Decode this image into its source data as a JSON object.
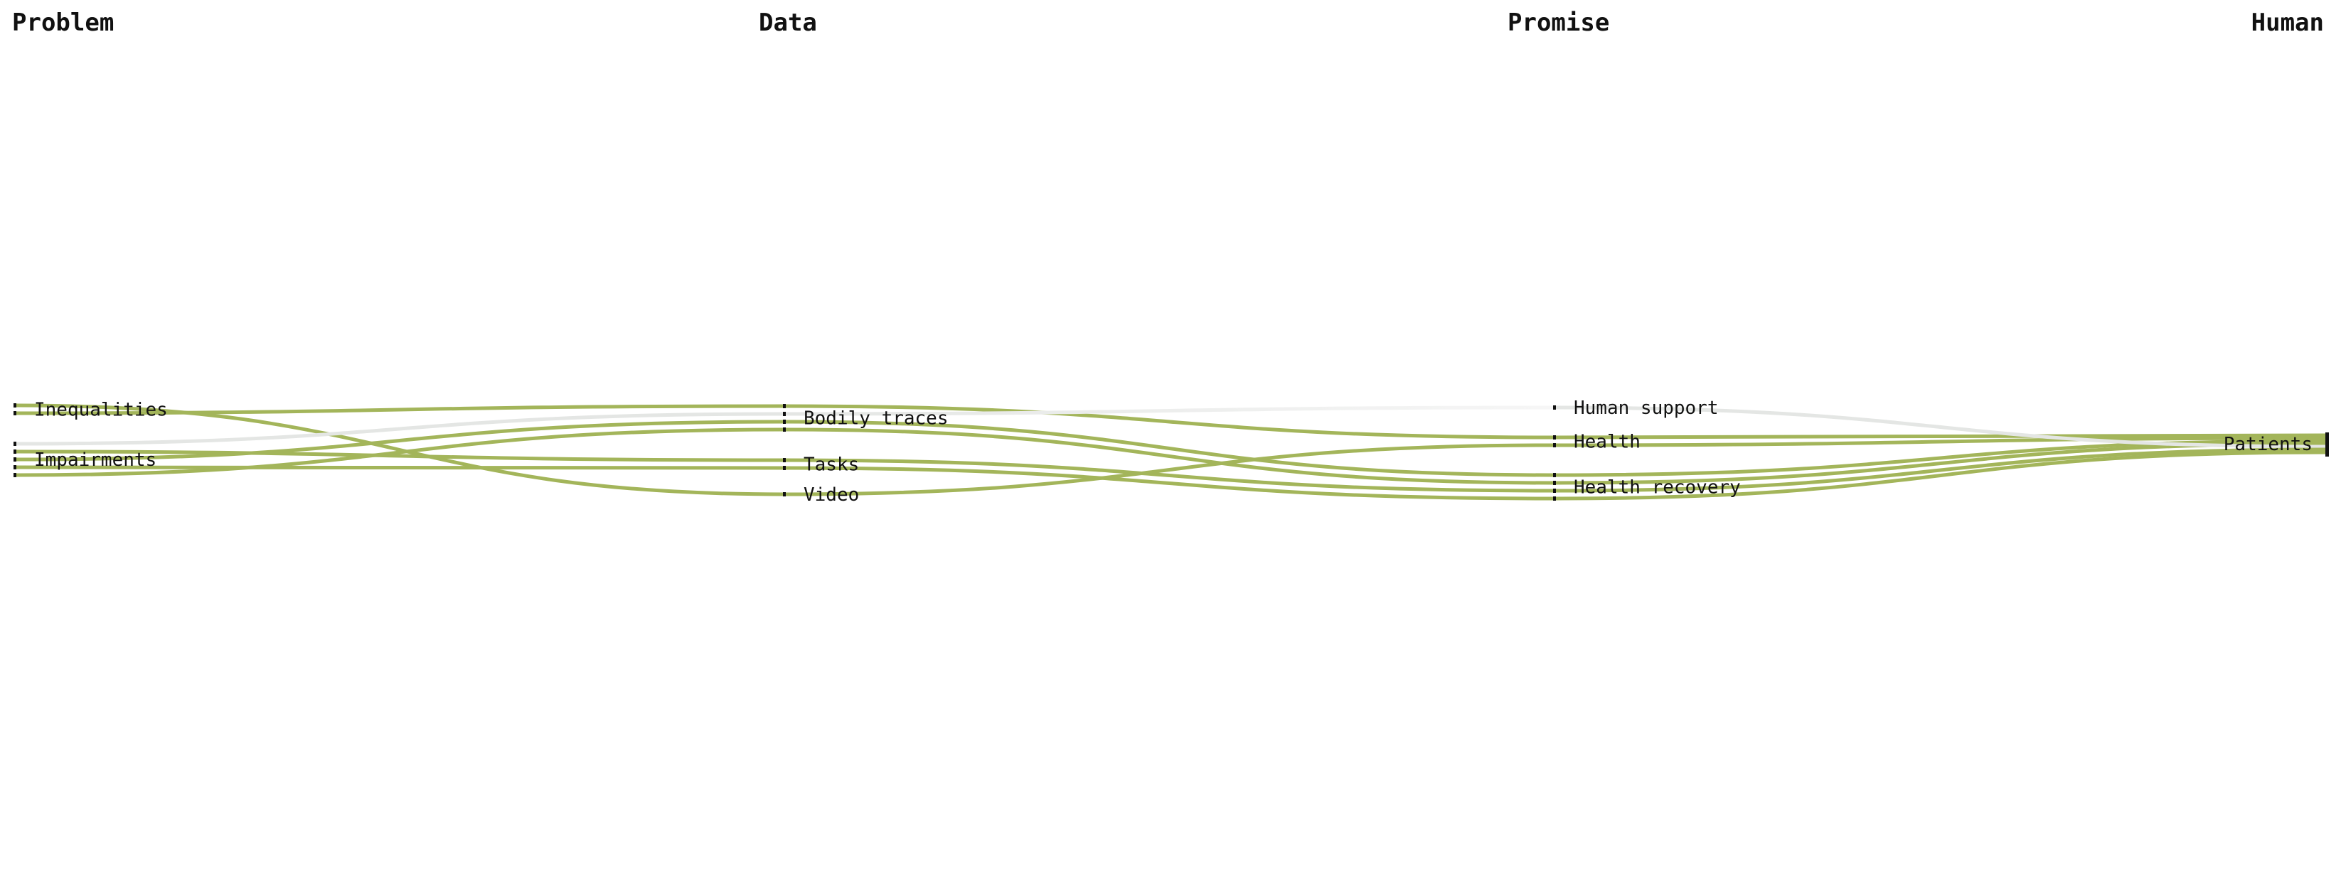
{
  "columns": [
    "Problem",
    "Data",
    "Promise",
    "Human"
  ],
  "colors": {
    "link": "#a3b55a",
    "muted_link": "#e4e6e4",
    "node": "#111111"
  },
  "nodes": [
    {
      "id": "inequalities",
      "label": "Inequalities",
      "column": 0
    },
    {
      "id": "impairments",
      "label": "Impairments",
      "column": 0
    },
    {
      "id": "bodily",
      "label": "Bodily traces",
      "column": 1
    },
    {
      "id": "tasks",
      "label": "Tasks",
      "column": 1
    },
    {
      "id": "video",
      "label": "Video",
      "column": 1
    },
    {
      "id": "human_support",
      "label": "Human support",
      "column": 2
    },
    {
      "id": "health",
      "label": "Health",
      "column": 2
    },
    {
      "id": "health_recovery",
      "label": "Health recovery",
      "column": 2
    },
    {
      "id": "patients",
      "label": "Patients",
      "column": 3
    }
  ],
  "links": [
    {
      "source": "inequalities",
      "target": "video",
      "value": 1,
      "muted": false
    },
    {
      "source": "inequalities",
      "target": "bodily",
      "value": 1,
      "muted": false
    },
    {
      "source": "impairments",
      "target": "bodily",
      "value": 1,
      "muted": true
    },
    {
      "source": "impairments",
      "target": "tasks",
      "value": 1,
      "muted": false
    },
    {
      "source": "impairments",
      "target": "bodily",
      "value": 1,
      "muted": false
    },
    {
      "source": "impairments",
      "target": "tasks",
      "value": 1,
      "muted": false
    },
    {
      "source": "impairments",
      "target": "bodily",
      "value": 1,
      "muted": false
    },
    {
      "source": "bodily",
      "target": "health",
      "value": 1,
      "muted": false
    },
    {
      "source": "bodily",
      "target": "human_support",
      "value": 1,
      "muted": true
    },
    {
      "source": "bodily",
      "target": "health_recovery",
      "value": 1,
      "muted": false
    },
    {
      "source": "bodily",
      "target": "health_recovery",
      "value": 1,
      "muted": false
    },
    {
      "source": "tasks",
      "target": "health_recovery",
      "value": 1,
      "muted": false
    },
    {
      "source": "tasks",
      "target": "health_recovery",
      "value": 1,
      "muted": false
    },
    {
      "source": "video",
      "target": "health",
      "value": 1,
      "muted": false
    },
    {
      "source": "health",
      "target": "patients",
      "value": 1,
      "muted": false
    },
    {
      "source": "health",
      "target": "patients",
      "value": 1,
      "muted": false
    },
    {
      "source": "health_recovery",
      "target": "patients",
      "value": 1,
      "muted": false
    },
    {
      "source": "health_recovery",
      "target": "patients",
      "value": 1,
      "muted": false
    },
    {
      "source": "human_support",
      "target": "patients",
      "value": 1,
      "muted": true
    },
    {
      "source": "health_recovery",
      "target": "patients",
      "value": 1,
      "muted": false
    },
    {
      "source": "health_recovery",
      "target": "patients",
      "value": 1,
      "muted": false
    }
  ]
}
